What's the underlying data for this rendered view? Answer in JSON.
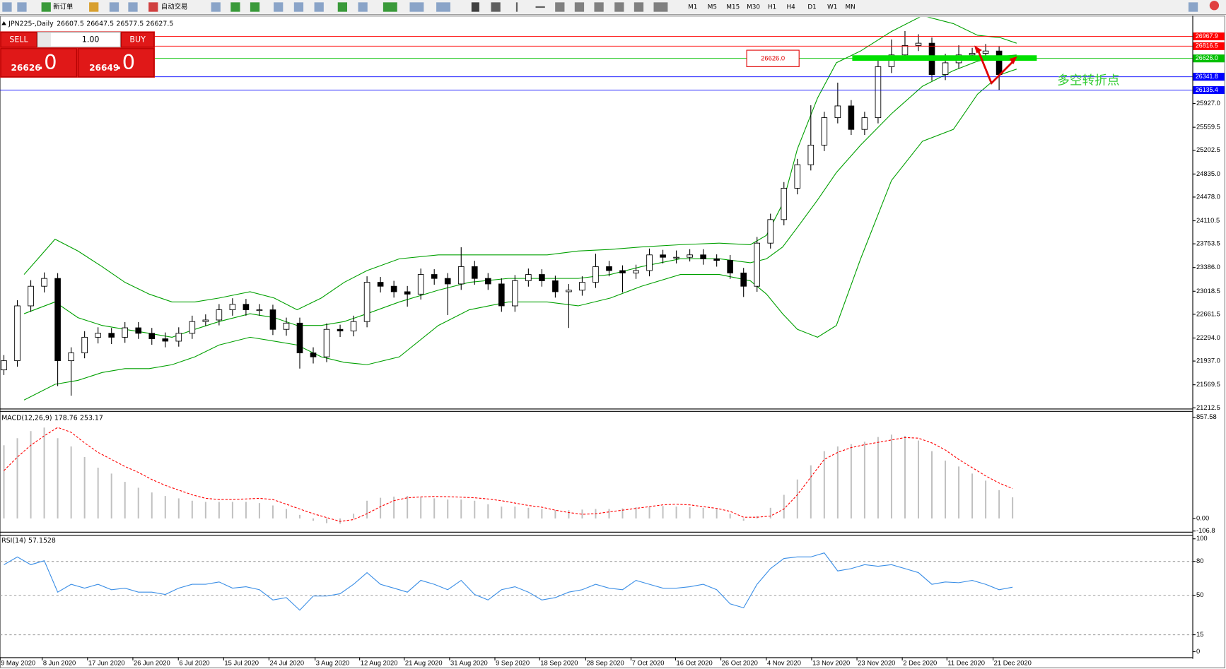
{
  "toolbar": {
    "new_order": "新订单",
    "auto_trading": "自动交易",
    "timeframes": [
      "M1",
      "M5",
      "M15",
      "M30",
      "H1",
      "H4",
      "D1",
      "W1",
      "MN"
    ]
  },
  "trade_panel": {
    "sell": "SELL",
    "buy": "BUY",
    "volume": "1.00",
    "sell_price": "26626",
    "sell_fraction": ".0",
    "buy_price": "26649",
    "buy_fraction": ".0"
  },
  "chart_data": [
    {
      "type": "candlestick",
      "symbol": "JPN225-,Daily",
      "up_color": "#ffffff",
      "down_color": "#000000",
      "band_color": "#00a000",
      "xlim": [
        -0.29,
        88.37
      ],
      "ylim": [
        21200,
        27264
      ],
      "yticks": [
        21212.5,
        21569.5,
        {
          "value": 21937,
          "label": "21937.0"
        },
        {
          "value": 22294,
          "label": "22294.0"
        },
        22661.5,
        23018.5,
        {
          "value": 23386,
          "label": "23386.0"
        },
        23753.5,
        24110.5,
        {
          "value": 24478,
          "label": "24478.0"
        },
        {
          "value": 24835,
          "label": "24835.0"
        },
        25202.5,
        25559.5,
        {
          "value": 25927,
          "label": "25927.0"
        }
      ],
      "xticks": [
        {
          "value": -0.29,
          "label": "9 May 2020"
        },
        {
          "value": 2.85,
          "label": "8 Jun 2020"
        },
        {
          "value": 6.22,
          "label": "17 Jun 2020"
        },
        {
          "value": 9.59,
          "label": "26 Jun 2020"
        },
        {
          "value": 12.97,
          "label": "6 Jul 2020"
        },
        {
          "value": 16.34,
          "label": "15 Jul 2020"
        },
        {
          "value": 19.71,
          "label": "24 Jul 2020"
        },
        {
          "value": 23.14,
          "label": "3 Aug 2020"
        },
        {
          "value": 26.45,
          "label": "12 Aug 2020"
        },
        {
          "value": 29.77,
          "label": "21 Aug 2020"
        },
        {
          "value": 33.14,
          "label": "31 Aug 2020"
        },
        {
          "value": 36.51,
          "label": "9 Sep 2020"
        },
        {
          "value": 39.83,
          "label": "18 Sep 2020"
        },
        {
          "value": 43.26,
          "label": "28 Sep 2020"
        },
        {
          "value": 46.63,
          "label": "7 Oct 2020"
        },
        {
          "value": 49.94,
          "label": "16 Oct 2020"
        },
        {
          "value": 53.31,
          "label": "26 Oct 2020"
        },
        {
          "value": 56.69,
          "label": "4 Nov 2020"
        },
        {
          "value": 60.06,
          "label": "13 Nov 2020"
        },
        {
          "value": 63.43,
          "label": "23 Nov 2020"
        },
        {
          "value": 66.8,
          "label": "2 Dec 2020"
        },
        {
          "value": 70.12,
          "label": "11 Dec 2020"
        },
        {
          "value": 73.55,
          "label": "21 Dec 2020"
        }
      ],
      "levels": [
        {
          "value": 26967.9,
          "color": "#ff0000"
        },
        {
          "value": 26816.5,
          "color": "#ff0000"
        },
        {
          "value": 26626,
          "label": "26626.0",
          "color": "#00c000"
        },
        {
          "value": 26341.8,
          "color": "#0000ff"
        },
        {
          "value": 26135.4,
          "color": "#0000ff"
        }
      ],
      "annotations": [
        {
          "text": "26626.0"
        },
        {
          "text": "多空转折点"
        }
      ],
      "candles": [
        [
          21800,
          22030,
          21720,
          21942
        ],
        [
          21942,
          22880,
          21850,
          22792
        ],
        [
          22792,
          23190,
          22700,
          23096
        ],
        [
          23096,
          23310,
          23000,
          23217
        ],
        [
          23217,
          23300,
          21550,
          21942
        ],
        [
          21942,
          22150,
          21400,
          22063
        ],
        [
          22063,
          22400,
          21980,
          22306
        ],
        [
          22306,
          22460,
          22210,
          22367
        ],
        [
          22367,
          22450,
          22200,
          22306
        ],
        [
          22306,
          22540,
          22220,
          22452
        ],
        [
          22452,
          22540,
          22280,
          22367
        ],
        [
          22367,
          22450,
          22190,
          22282
        ],
        [
          22282,
          22380,
          22150,
          22245
        ],
        [
          22245,
          22460,
          22160,
          22367
        ],
        [
          22367,
          22640,
          22280,
          22549
        ],
        [
          22549,
          22660,
          22480,
          22573
        ],
        [
          22573,
          22820,
          22490,
          22731
        ],
        [
          22731,
          22910,
          22640,
          22816
        ],
        [
          22816,
          22900,
          22640,
          22731
        ],
        [
          22731,
          22820,
          22640,
          22731
        ],
        [
          22731,
          22810,
          22340,
          22428
        ],
        [
          22428,
          22610,
          22330,
          22525
        ],
        [
          22525,
          22610,
          21820,
          22063
        ],
        [
          22063,
          22150,
          21900,
          22002
        ],
        [
          22002,
          22520,
          21920,
          22428
        ],
        [
          22428,
          22500,
          22310,
          22403
        ],
        [
          22403,
          22640,
          22320,
          22549
        ],
        [
          22549,
          23250,
          22460,
          23157
        ],
        [
          23157,
          23240,
          23000,
          23096
        ],
        [
          23096,
          23180,
          22920,
          23011
        ],
        [
          23011,
          23100,
          22780,
          22974
        ],
        [
          22974,
          23370,
          22890,
          23278
        ],
        [
          23278,
          23360,
          23120,
          23217
        ],
        [
          23217,
          23300,
          22650,
          23132
        ],
        [
          23132,
          23700,
          23040,
          23400
        ],
        [
          23400,
          23490,
          23120,
          23217
        ],
        [
          23217,
          23300,
          23040,
          23132
        ],
        [
          23132,
          23220,
          22700,
          22792
        ],
        [
          22792,
          23270,
          22700,
          23181
        ],
        [
          23181,
          23370,
          23090,
          23278
        ],
        [
          23278,
          23360,
          23090,
          23181
        ],
        [
          23181,
          23260,
          22920,
          23011
        ],
        [
          23011,
          23130,
          22450,
          23035
        ],
        [
          23035,
          23250,
          22950,
          23157
        ],
        [
          23157,
          23600,
          23070,
          23400
        ],
        [
          23400,
          23490,
          23250,
          23339
        ],
        [
          23339,
          23420,
          23000,
          23302
        ],
        [
          23302,
          23430,
          23210,
          23339
        ],
        [
          23339,
          23680,
          23250,
          23582
        ],
        [
          23582,
          23660,
          23450,
          23545
        ],
        [
          23545,
          23650,
          23450,
          23545
        ],
        [
          23545,
          23670,
          23480,
          23582
        ],
        [
          23582,
          23670,
          23430,
          23521
        ],
        [
          23521,
          23590,
          23400,
          23497
        ],
        [
          23497,
          23580,
          23210,
          23302
        ],
        [
          23302,
          23380,
          22930,
          23096
        ],
        [
          23096,
          23860,
          23010,
          23764
        ],
        [
          23764,
          24220,
          23680,
          24129
        ],
        [
          24129,
          24710,
          24040,
          24615
        ],
        [
          24615,
          25070,
          24520,
          24979
        ],
        [
          24979,
          25900,
          24890,
          25283
        ],
        [
          25283,
          25800,
          25190,
          25708
        ],
        [
          25708,
          26250,
          25620,
          25890
        ],
        [
          25890,
          25980,
          25440,
          25526
        ],
        [
          25526,
          25800,
          25440,
          25708
        ],
        [
          25708,
          26600,
          25620,
          26498
        ],
        [
          26498,
          26920,
          26400,
          26680
        ],
        [
          26680,
          27050,
          26590,
          26826
        ],
        [
          26826,
          27000,
          26740,
          26862
        ],
        [
          26862,
          26950,
          26280,
          26376
        ],
        [
          26376,
          26700,
          26290,
          26558
        ],
        [
          26558,
          26830,
          26470,
          26680
        ],
        [
          26680,
          26790,
          26600,
          26704
        ],
        [
          26704,
          26850,
          26620,
          26741
        ],
        [
          26741,
          26810,
          26135,
          26376
        ],
        [
          26607.5,
          26647.5,
          26577.5,
          26627.5
        ]
      ],
      "bands": {
        "x": [
          1.5,
          3.8,
          5.5,
          7.3,
          9,
          10.8,
          12.5,
          14.2,
          16,
          18.3,
          20.1,
          21.8,
          23.6,
          25.3,
          27,
          29.4,
          32.3,
          34.6,
          37.5,
          40.4,
          42.7,
          45.1,
          47.4,
          50.3,
          53.2,
          55.5,
          56.7,
          57.9,
          59,
          60.5,
          61.9,
          63.7,
          66,
          68.3,
          70.6,
          72.4,
          74.1,
          75.3
        ],
        "upper": [
          23278,
          23825,
          23643,
          23400,
          23157,
          22974,
          22853,
          22853,
          22913,
          23011,
          22913,
          22731,
          22913,
          23157,
          23339,
          23521,
          23582,
          23582,
          23582,
          23582,
          23643,
          23667,
          23704,
          23740,
          23764,
          23740,
          23886,
          24372,
          25222,
          26012,
          26559,
          26741,
          27044,
          27288,
          27166,
          26984,
          26947,
          26862
        ],
        "middle": [
          22670,
          22853,
          22610,
          22488,
          22428,
          22367,
          22306,
          22428,
          22549,
          22670,
          22610,
          22488,
          22488,
          22549,
          22670,
          22853,
          23035,
          23157,
          23217,
          23217,
          23217,
          23278,
          23400,
          23521,
          23521,
          23460,
          23521,
          23703,
          24007,
          24432,
          24858,
          25283,
          25769,
          26194,
          26437,
          26583,
          26656,
          26680
        ],
        "lower": [
          21334,
          21577,
          21638,
          21759,
          21820,
          21820,
          21881,
          22002,
          22185,
          22306,
          22245,
          22185,
          22002,
          21917,
          21881,
          22002,
          22488,
          22731,
          22853,
          22853,
          22792,
          22913,
          23096,
          23278,
          23278,
          23181,
          22974,
          22670,
          22428,
          22306,
          22488,
          23521,
          24736,
          25343,
          25526,
          26073,
          26376,
          26461
        ]
      }
    },
    {
      "type": "macd",
      "title": "MACD(12,26,9)",
      "bar_color": "#c0c0c0",
      "signal_color": "#ff0000",
      "ylim": [
        -113,
        904
      ],
      "yticks": [
        857.58,
        {
          "value": 0,
          "label": "0.00"
        },
        -106.8
      ],
      "histogram": [
        620,
        680,
        740,
        770,
        680,
        610,
        520,
        430,
        380,
        310,
        260,
        220,
        190,
        170,
        150,
        140,
        140,
        140,
        140,
        130,
        110,
        80,
        30,
        -20,
        -40,
        -45,
        40,
        150,
        175,
        185,
        190,
        180,
        170,
        160,
        160,
        150,
        120,
        100,
        100,
        90,
        80,
        70,
        70,
        75,
        80,
        80,
        85,
        95,
        100,
        105,
        100,
        95,
        90,
        80,
        40,
        -20,
        20,
        90,
        200,
        330,
        450,
        570,
        610,
        630,
        650,
        690,
        710,
        700,
        660,
        570,
        490,
        440,
        380,
        320,
        240,
        178.76
      ],
      "signal": [
        405,
        520,
        620,
        700,
        771,
        730,
        640,
        560,
        500,
        440,
        390,
        330,
        280,
        240,
        200,
        170,
        160,
        160,
        165,
        170,
        160,
        120,
        80,
        40,
        7,
        -25,
        -10,
        40,
        100,
        150,
        175,
        182,
        186,
        184,
        180,
        175,
        165,
        150,
        130,
        110,
        95,
        70,
        50,
        35,
        40,
        55,
        70,
        85,
        100,
        115,
        120,
        115,
        100,
        85,
        60,
        10,
        10,
        20,
        80,
        200,
        350,
        500,
        560,
        600,
        625,
        645,
        665,
        685,
        680,
        640,
        580,
        500,
        430,
        360,
        300,
        253.17
      ]
    },
    {
      "type": "line",
      "title": "RSI(14)",
      "color": "#3a8ee6",
      "ylim": [
        -4.9,
        102.8
      ],
      "yticks": [
        100,
        80,
        50,
        15,
        0
      ],
      "levels": [
        80,
        50,
        15
      ],
      "values": [
        77.1,
        84.0,
        77.1,
        80.6,
        52.8,
        59.7,
        56.3,
        59.7,
        54.9,
        56.3,
        52.8,
        52.8,
        50.7,
        56.3,
        59.7,
        59.7,
        61.8,
        56.3,
        57.6,
        54.9,
        45.8,
        47.9,
        36.8,
        49.3,
        49.3,
        51.4,
        59.7,
        70.1,
        59.7,
        56.3,
        52.8,
        63.2,
        59.7,
        54.9,
        63.2,
        50.7,
        45.8,
        54.9,
        57.6,
        52.8,
        45.8,
        47.9,
        52.8,
        54.9,
        59.7,
        56.3,
        54.9,
        63.2,
        59.7,
        56.3,
        56.3,
        57.6,
        59.7,
        54.9,
        42.4,
        38.9,
        59.7,
        73.6,
        82.6,
        84.0,
        84.0,
        87.5,
        71.5,
        73.6,
        77.1,
        75.7,
        77.1,
        73.6,
        70.1,
        59.7,
        61.8,
        61.1,
        63.2,
        59.7,
        54.9,
        57.1528
      ]
    }
  ]
}
